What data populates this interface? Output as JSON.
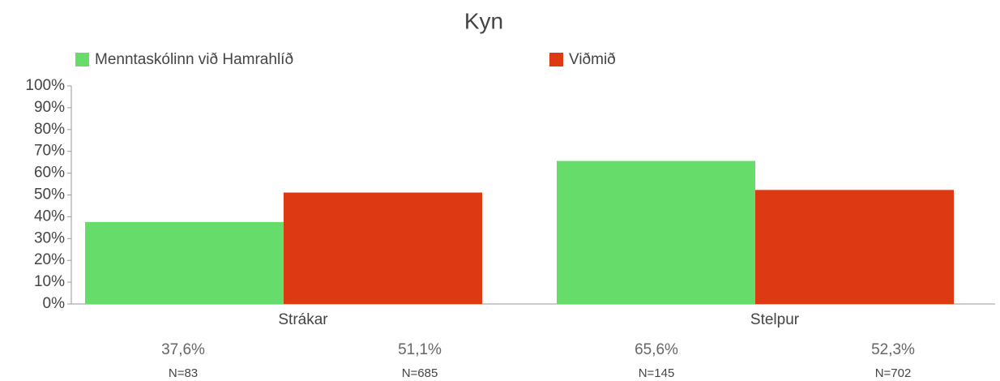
{
  "chart_data": {
    "type": "bar",
    "title": "Kyn",
    "categories": [
      "Strákar",
      "Stelpur"
    ],
    "series": [
      {
        "name": "Menntaskólinn við Hamrahlíð",
        "color": "#66dd6a",
        "values": [
          37.6,
          65.6
        ],
        "value_labels": [
          "37,6%",
          "65,6%"
        ],
        "n_labels": [
          "N=83",
          "N=145"
        ]
      },
      {
        "name": "Viðmið",
        "color": "#dd3a14",
        "values": [
          51.1,
          52.3
        ],
        "value_labels": [
          "51,1%",
          "52,3%"
        ],
        "n_labels": [
          "N=685",
          "N=702"
        ]
      }
    ],
    "ylim": [
      0,
      100
    ],
    "yticks": [
      {
        "value": 0,
        "label": "0%"
      },
      {
        "value": 10,
        "label": "10%"
      },
      {
        "value": 20,
        "label": "20%"
      },
      {
        "value": 30,
        "label": "30%"
      },
      {
        "value": 40,
        "label": "40%"
      },
      {
        "value": 50,
        "label": "50%"
      },
      {
        "value": 60,
        "label": "60%"
      },
      {
        "value": 70,
        "label": "70%"
      },
      {
        "value": 80,
        "label": "80%"
      },
      {
        "value": 90,
        "label": "90%"
      },
      {
        "value": 100,
        "label": "100%"
      }
    ]
  }
}
